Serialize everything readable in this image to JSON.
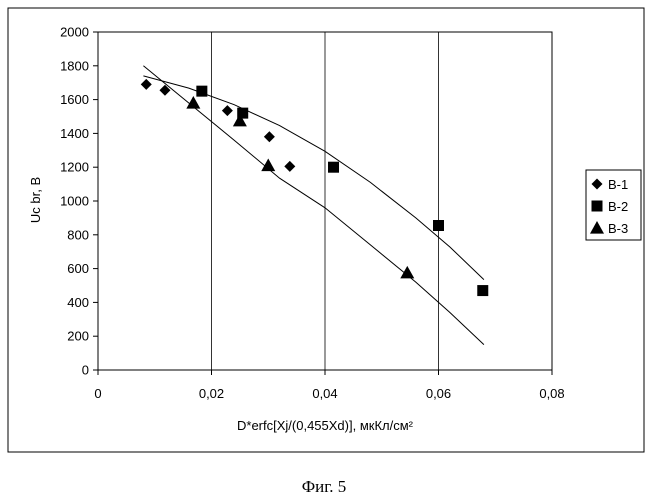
{
  "chart_data": {
    "type": "scatter",
    "title": "",
    "xlabel": "D*erfc[Xj/(0,455Xd)], мкКл/см²",
    "ylabel": "Uc br, B",
    "xlim": [
      0,
      0.08
    ],
    "ylim": [
      0,
      2000
    ],
    "x_ticks": [
      "0",
      "0,02",
      "0,04",
      "0,06",
      "0,08"
    ],
    "y_ticks": [
      "0",
      "200",
      "400",
      "600",
      "800",
      "1000",
      "1200",
      "1400",
      "1600",
      "1800",
      "2000"
    ],
    "grid": "vertical lines only",
    "legend_position": "right",
    "series": [
      {
        "name": "B-1",
        "marker": "diamond",
        "x": [
          0.0085,
          0.0118,
          0.0228,
          0.0302,
          0.0338
        ],
        "y": [
          1690,
          1655,
          1535,
          1380,
          1205
        ]
      },
      {
        "name": "B-2",
        "marker": "square",
        "x": [
          0.0183,
          0.0255,
          0.0415,
          0.06,
          0.0678
        ],
        "y": [
          1650,
          1520,
          1200,
          855,
          470
        ]
      },
      {
        "name": "B-3",
        "marker": "triangle",
        "x": [
          0.0168,
          0.025,
          0.03,
          0.0545
        ],
        "y": [
          1580,
          1475,
          1210,
          575
        ]
      }
    ],
    "trendlines": [
      {
        "x": [
          0.008,
          0.016,
          0.024,
          0.032,
          0.04,
          0.048,
          0.056,
          0.062,
          0.068
        ],
        "y": [
          1740,
          1668,
          1570,
          1446,
          1294,
          1110,
          900,
          728,
          535
        ]
      },
      {
        "x": [
          0.008,
          0.016,
          0.024,
          0.032,
          0.04,
          0.048,
          0.056,
          0.062,
          0.068
        ],
        "y": [
          1800,
          1580,
          1360,
          1135,
          960,
          740,
          520,
          340,
          150
        ]
      }
    ]
  },
  "caption": "Фиг. 5"
}
